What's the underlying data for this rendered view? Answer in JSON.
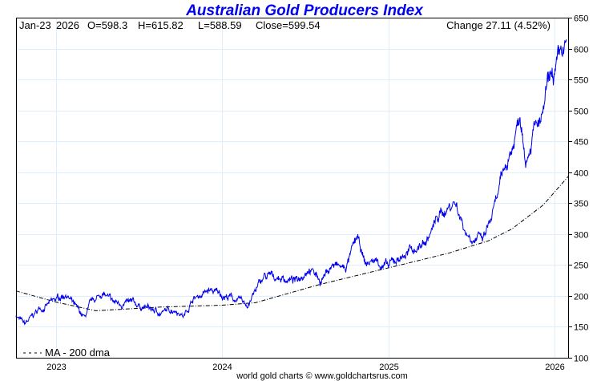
{
  "chart_data": {
    "type": "line",
    "title": "Australian Gold Producers Index",
    "info": {
      "date": "Jan-23",
      "year": "2026",
      "open": "O=598.3",
      "high": "H=615.82",
      "low": "L=588.59",
      "close": "Close=599.54",
      "change": "Change 27.11 (4.52%)"
    },
    "ylim": [
      100,
      650
    ],
    "yticks": [
      100,
      150,
      200,
      250,
      300,
      350,
      400,
      450,
      500,
      550,
      600,
      650
    ],
    "xlim": [
      2022.76,
      2026.08
    ],
    "xticks": [
      {
        "v": 2023,
        "label": "2023"
      },
      {
        "v": 2024,
        "label": "2024"
      },
      {
        "v": 2025,
        "label": "2025"
      },
      {
        "v": 2026,
        "label": "2026"
      }
    ],
    "grid": true,
    "legend": {
      "label": "MA - 200 dma",
      "position": "bottom-left"
    },
    "credit": "world gold charts © www.goldchartsrus.com",
    "colors": {
      "price": "#0000ee",
      "ma": "#000000",
      "grid": "#ddeeff",
      "title": "#0000ee"
    },
    "series": [
      {
        "name": "Price",
        "x": [
          2022.76,
          2022.81,
          2022.86,
          2022.9,
          2023.0,
          2023.06,
          2023.12,
          2023.17,
          2023.21,
          2023.28,
          2023.34,
          2023.43,
          2023.53,
          2023.63,
          2023.72,
          2023.77,
          2023.82,
          2023.92,
          2024.05,
          2024.15,
          2024.25,
          2024.34,
          2024.45,
          2024.52,
          2024.59,
          2024.66,
          2024.74,
          2024.81,
          2024.86,
          2024.92,
          2025.0,
          2025.07,
          2025.16,
          2025.23,
          2025.3,
          2025.4,
          2025.47,
          2025.57,
          2025.64,
          2025.7,
          2025.75,
          2025.79,
          2025.83,
          2025.87,
          2025.92,
          2025.96,
          2026.01,
          2026.06
        ],
        "values": [
          169,
          153,
          166,
          179,
          192,
          205,
          179,
          163,
          185,
          205,
          188,
          188,
          182,
          172,
          180,
          168,
          195,
          208,
          198,
          185,
          230,
          230,
          224,
          250,
          225,
          250,
          243,
          292,
          250,
          258,
          246,
          263,
          276,
          289,
          328,
          354,
          302,
          289,
          341,
          406,
          445,
          497,
          432,
          471,
          477,
          536,
          562,
          600
        ]
      },
      {
        "name": "MA - 200 dma",
        "x": [
          2022.76,
          2023.0,
          2023.24,
          2023.63,
          2024.0,
          2024.2,
          2024.58,
          2024.87,
          2025.07,
          2025.36,
          2025.6,
          2025.74,
          2025.93,
          2026.08
        ],
        "values": [
          208,
          190,
          176,
          182,
          185,
          189,
          218,
          237,
          250,
          269,
          289,
          308,
          347,
          393
        ]
      }
    ]
  }
}
